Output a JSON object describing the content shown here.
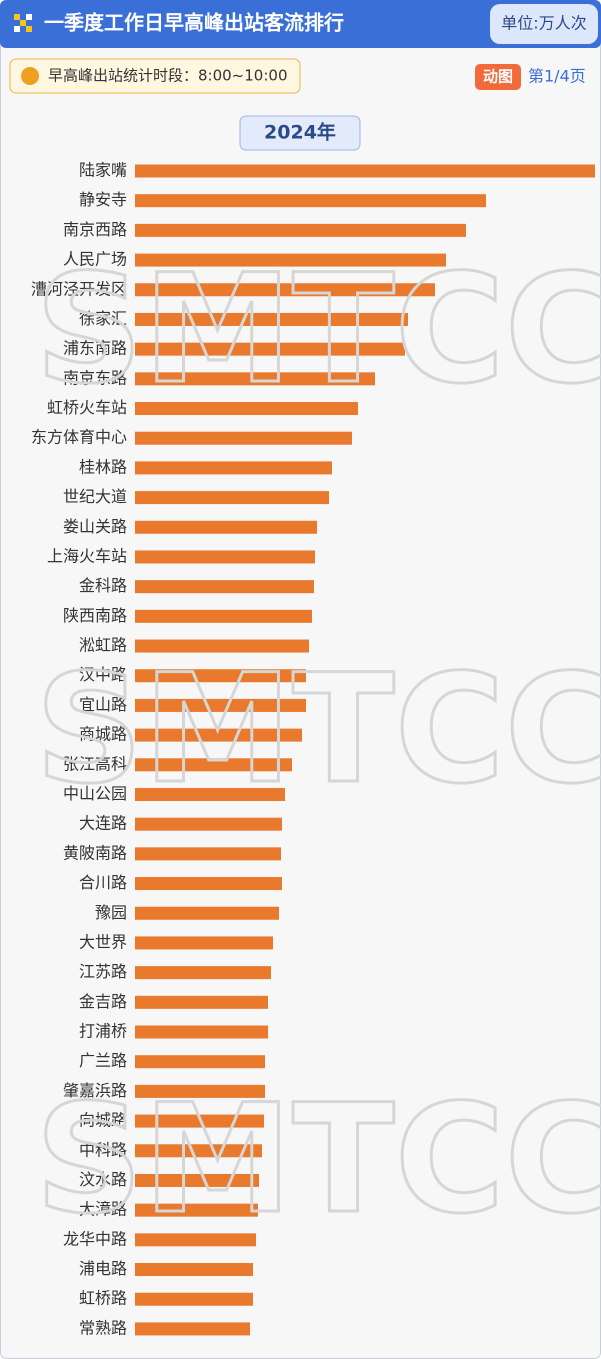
{
  "chart_data": {
    "type": "bar",
    "orientation": "horizontal",
    "title": "一季度工作日早高峰出站客流排行",
    "unit": "单位:万人次",
    "subtitle": "早高峰出站统计时段：8:00~10:00",
    "badge": "动图",
    "page_label": "第1/4页",
    "year": "2024年",
    "watermark": "SMTCC",
    "color": "#e8792d",
    "xlim": [
      0,
      460
    ],
    "categories": [
      "陆家嘴",
      "静安寺",
      "南京西路",
      "人民广场",
      "漕河泾开发区",
      "徐家汇",
      "浦东南路",
      "南京东路",
      "虹桥火车站",
      "东方体育中心",
      "桂林路",
      "世纪大道",
      "娄山关路",
      "上海火车站",
      "金科路",
      "陕西南路",
      "淞虹路",
      "汉中路",
      "宜山路",
      "商城路",
      "张江高科",
      "中山公园",
      "大连路",
      "黄陂南路",
      "合川路",
      "豫园",
      "大世界",
      "江苏路",
      "金吉路",
      "打浦桥",
      "广兰路",
      "肇嘉浜路",
      "向城路",
      "中科路",
      "汶水路",
      "大漳路",
      "龙华中路",
      "浦电路",
      "虹桥路",
      "常熟路"
    ],
    "values": [
      460,
      351,
      331,
      311,
      300,
      273,
      270,
      240,
      223,
      217,
      197,
      194,
      182,
      180,
      179,
      177,
      174,
      171,
      171,
      167,
      157,
      150,
      147,
      146,
      147,
      144,
      138,
      136,
      133,
      133,
      130,
      130,
      129,
      127,
      124,
      123,
      121,
      118,
      118,
      115
    ]
  }
}
